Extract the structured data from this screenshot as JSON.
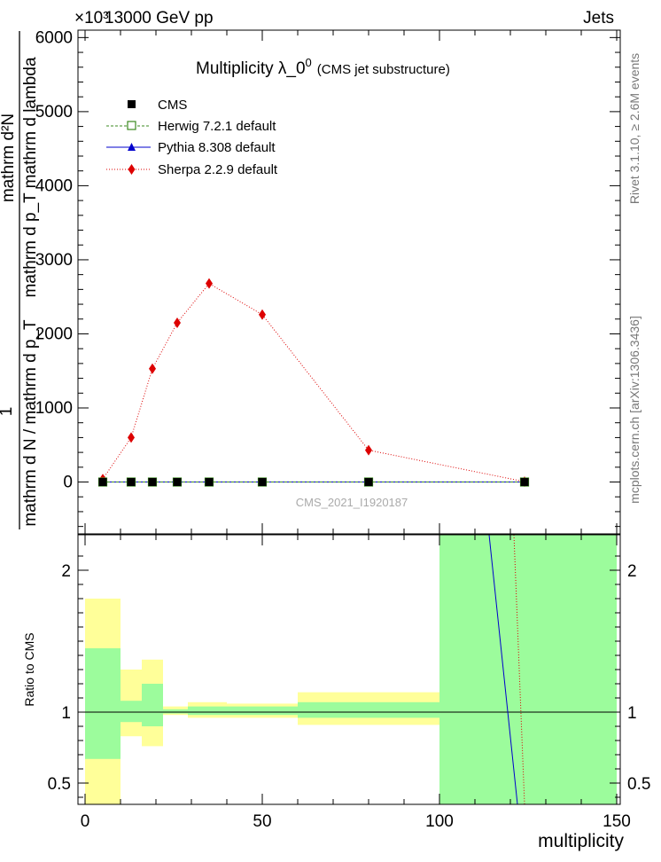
{
  "header": {
    "left": "13000 GeV pp",
    "right": "Jets",
    "yscale_exponent": "×10³"
  },
  "side_labels": {
    "rivet": "Rivet 3.1.10, ≥ 2.6M events",
    "mcplots": "mcplots.cern.ch [arXiv:1306.3436]"
  },
  "chart_data": [
    {
      "type": "line",
      "title": "Multiplicity  λ_0",
      "title_sup": "0",
      "subtitle": "(CMS jet substructure)",
      "watermark": "CMS_2021_I1920187",
      "ylabel_prefix": "1",
      "ylabel_top": "mathrm d²N",
      "ylabel_middle": "mathrm d p_T mathrm d lambda",
      "ylabel_bottom": "mathrm d N / mathrm d p_T",
      "xlim": [
        -2,
        151
      ],
      "ylim": [
        -700,
        6100
      ],
      "ytick_values": [
        0,
        1000,
        2000,
        3000,
        4000,
        5000,
        6000
      ],
      "ytick_labels": [
        "0",
        "1000",
        "2000",
        "3000",
        "4000",
        "5000",
        "6000"
      ],
      "legend_position": "top-left",
      "series": [
        {
          "name": "CMS",
          "color": "#000000",
          "marker": "square-filled",
          "line": "none",
          "x": [
            5,
            13,
            19,
            26,
            35,
            50,
            80,
            124
          ],
          "y": [
            0,
            0,
            0,
            0,
            0,
            0,
            0,
            0
          ]
        },
        {
          "name": "Herwig 7.2.1 default",
          "color": "#3b8a1f",
          "marker": "square-open",
          "line": "dashed",
          "x": [
            5,
            13,
            19,
            26,
            35,
            50,
            80,
            124
          ],
          "y": [
            0,
            0,
            0,
            0,
            0,
            0,
            0,
            0
          ]
        },
        {
          "name": "Pythia 8.308 default",
          "color": "#0000cc",
          "marker": "triangle",
          "line": "solid",
          "x": [
            5,
            13,
            19,
            26,
            35,
            50,
            80,
            124
          ],
          "y": [
            0,
            0,
            0,
            0,
            0,
            0,
            0,
            0
          ]
        },
        {
          "name": "Sherpa 2.2.9 default",
          "color": "#dd0000",
          "marker": "diamond",
          "line": "dotted",
          "x": [
            5,
            13,
            19,
            26,
            35,
            50,
            80,
            124
          ],
          "y": [
            40,
            600,
            1530,
            2150,
            2680,
            2260,
            430,
            5
          ]
        }
      ]
    },
    {
      "type": "area",
      "ylabel": "Ratio to CMS",
      "xlabel": "multiplicity",
      "xlim": [
        -2,
        151
      ],
      "ylim": [
        0.35,
        2.25
      ],
      "xtick_values": [
        0,
        50,
        100,
        150
      ],
      "xtick_labels": [
        "0",
        "50",
        "100",
        "150"
      ],
      "ytick_values": [
        0.5,
        1,
        2
      ],
      "ytick_labels": [
        "0.5",
        "1",
        "2"
      ],
      "reference_line": 1,
      "bands": [
        {
          "x0": 0,
          "x1": 10,
          "inner": [
            0.67,
            1.45
          ],
          "outer": [
            0.35,
            1.8
          ]
        },
        {
          "x0": 10,
          "x1": 16,
          "inner": [
            0.93,
            1.08
          ],
          "outer": [
            0.83,
            1.3
          ]
        },
        {
          "x0": 16,
          "x1": 22,
          "inner": [
            0.9,
            1.2
          ],
          "outer": [
            0.76,
            1.37
          ]
        },
        {
          "x0": 22,
          "x1": 29,
          "inner": [
            0.99,
            1.02
          ],
          "outer": [
            0.98,
            1.04
          ]
        },
        {
          "x0": 29,
          "x1": 40,
          "inner": [
            0.98,
            1.04
          ],
          "outer": [
            0.96,
            1.07
          ]
        },
        {
          "x0": 40,
          "x1": 60,
          "inner": [
            0.98,
            1.04
          ],
          "outer": [
            0.96,
            1.06
          ]
        },
        {
          "x0": 60,
          "x1": 100,
          "inner": [
            0.96,
            1.07
          ],
          "outer": [
            0.91,
            1.14
          ]
        },
        {
          "x0": 100,
          "x1": 150,
          "inner": [
            0.35,
            2.25
          ],
          "outer": [
            0.35,
            2.25
          ]
        }
      ],
      "band_colors": {
        "inner": "#9cfc9c",
        "outer": "#ffff99"
      },
      "ratio_lines": [
        {
          "name": "Pythia 8.308 default",
          "color": "#0000cc",
          "style": "solid",
          "x": [
            114,
            122
          ],
          "y": [
            2.25,
            0.35
          ]
        },
        {
          "name": "Sherpa 2.2.9 default",
          "color": "#dd0000",
          "style": "dotted",
          "x": [
            121,
            124
          ],
          "y": [
            2.25,
            0.35
          ]
        }
      ]
    }
  ]
}
